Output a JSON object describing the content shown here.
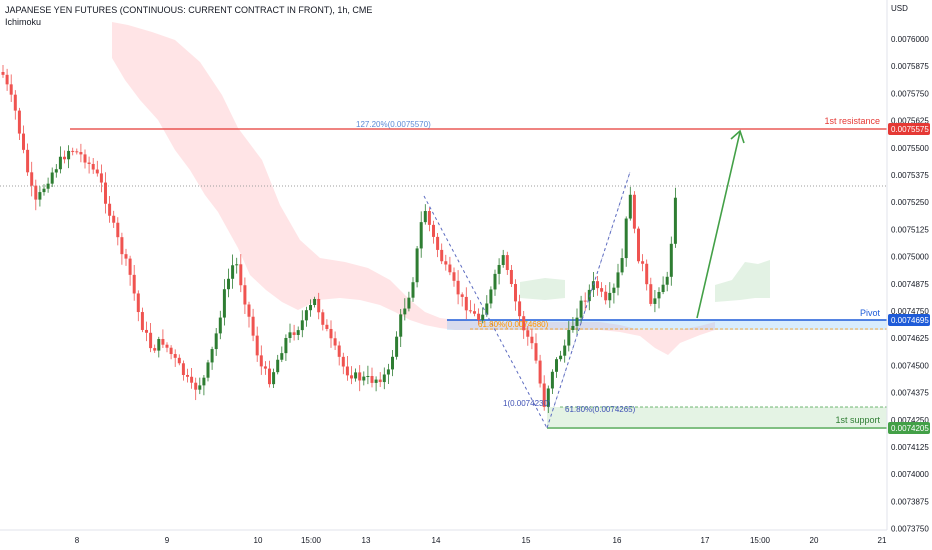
{
  "header": {
    "title": "JAPANESE YEN FUTURES (CONTINUOUS: CURRENT CONTRACT IN FRONT), 1h, CME",
    "indicator": "Ichimoku",
    "currency": "USD"
  },
  "chart_data": {
    "type": "candlestick",
    "x_ticks": [
      "8",
      "9",
      "10",
      "15:00",
      "13",
      "14",
      "15",
      "16",
      "17",
      "15:00",
      "20",
      "21"
    ],
    "y_ticks": [
      "0.0076000",
      "0.0075875",
      "0.0075750",
      "0.0075625",
      "0.0075500",
      "0.0075375",
      "0.0075250",
      "0.0075125",
      "0.0075000",
      "0.0074875",
      "0.0074750",
      "0.0074625",
      "0.0074500",
      "0.0074375",
      "0.0074250",
      "0.0074125",
      "0.0074000",
      "0.0073875",
      "0.0073750"
    ],
    "ylim": [
      0.0073725,
      0.0076165
    ],
    "levels": [
      {
        "name": "1st resistance",
        "value": "0.0075575",
        "color": "#e53935"
      },
      {
        "name": "Pivot",
        "value": "0.0074695",
        "color": "#1e5bd8"
      },
      {
        "name": "1st support",
        "value": "0.0074205",
        "color": "#43a047"
      }
    ],
    "annotations": {
      "fib_127": "127.20%(0.0075570)",
      "fib_618_pivot": "61.80%(0.0074680)",
      "fib_1": "1(0.0074230)",
      "fib_618_support": "61.80%(0.0074265)"
    },
    "colors": {
      "up": "#2e7d32",
      "down": "#ef5350",
      "cloud_bear": "#ffcdd2",
      "cloud_bull": "#c8e6c9"
    }
  }
}
